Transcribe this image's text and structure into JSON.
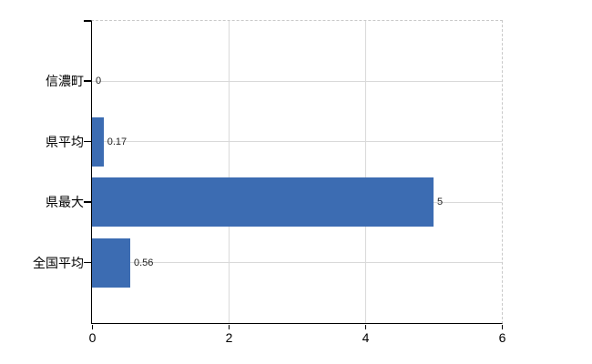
{
  "chart_data": {
    "type": "bar",
    "orientation": "horizontal",
    "title": "",
    "xlabel": "",
    "ylabel": "",
    "categories": [
      "信濃町",
      "県平均",
      "県最大",
      "全国平均"
    ],
    "values": [
      0,
      0.17,
      5,
      0.56
    ],
    "value_labels": [
      "0",
      "0.17",
      "5",
      "0.56"
    ],
    "xlim": [
      0,
      6
    ],
    "x_ticks": [
      0,
      2,
      4,
      6
    ],
    "x_tick_labels": [
      "0",
      "2",
      "4",
      "6"
    ],
    "grid": true,
    "legend": false,
    "colors": {
      "bar": "#3c6cb2",
      "grid": "#d9d9d9",
      "dashed_border": "#c9c9c9",
      "axis": "#000000",
      "value_text": "#222222",
      "label_text": "#000000",
      "background": "#ffffff"
    }
  }
}
